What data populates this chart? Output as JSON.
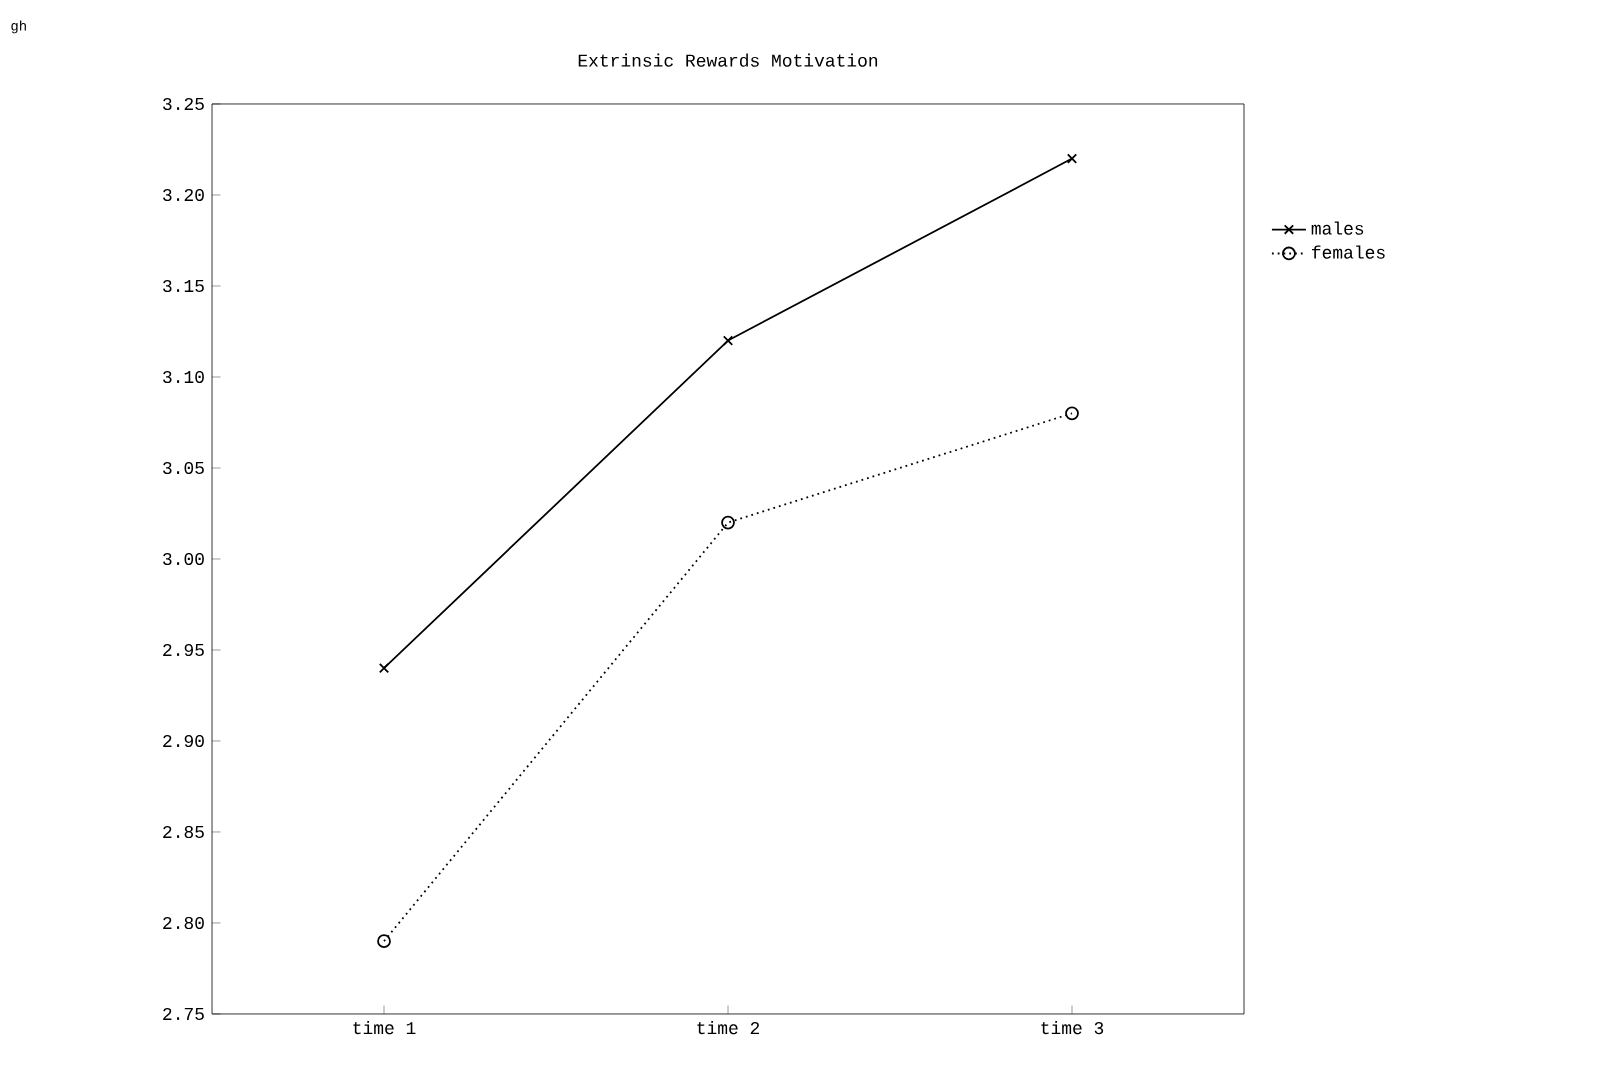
{
  "chart_data": {
    "type": "line",
    "title": "Extrinsic Rewards Motivation",
    "annotations": [
      "gh"
    ],
    "categories": [
      "time 1",
      "time 2",
      "time 3"
    ],
    "series": [
      {
        "name": "males",
        "color": "#000000",
        "values": [
          2.94,
          3.12,
          3.22
        ],
        "marker": "cross",
        "line_style": "solid"
      },
      {
        "name": "females",
        "color": "#000000",
        "values": [
          2.79,
          3.02,
          3.08
        ],
        "marker": "circle",
        "line_style": "dotted"
      }
    ],
    "ylim": [
      2.75,
      3.25
    ],
    "yticks": [
      {
        "value": 2.75,
        "label": "2.75"
      },
      {
        "value": 2.8,
        "label": "2.80"
      },
      {
        "value": 2.85,
        "label": "2.85"
      },
      {
        "value": 2.9,
        "label": "2.90"
      },
      {
        "value": 2.95,
        "label": "2.95"
      },
      {
        "value": 3.0,
        "label": "3.00"
      },
      {
        "value": 3.05,
        "label": "3.05"
      },
      {
        "value": 3.1,
        "label": "3.10"
      },
      {
        "value": 3.15,
        "label": "3.15"
      },
      {
        "value": 3.2,
        "label": "3.20"
      },
      {
        "value": 3.25,
        "label": "3.25"
      }
    ],
    "grid": false,
    "legend": "right"
  }
}
